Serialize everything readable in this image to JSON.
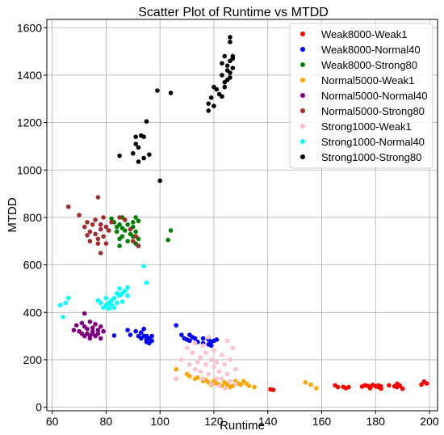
{
  "chart_data": {
    "type": "scatter",
    "title": "Scatter Plot of Runtime vs MTDD",
    "xlabel": "Runtime",
    "ylabel": "MTDD",
    "xlim": [
      58,
      203
    ],
    "ylim": [
      -15,
      1635
    ],
    "xticks": [
      "60",
      "80",
      "100",
      "120",
      "140",
      "160",
      "180",
      "200"
    ],
    "yticks": [
      "0",
      "200",
      "400",
      "600",
      "800",
      "1000",
      "1200",
      "1400",
      "1600"
    ],
    "grid": true,
    "legend_position": "top-right",
    "series": [
      {
        "name": "Weak8000-Weak1",
        "color": "#ff0000",
        "points": [
          [
            141,
            75
          ],
          [
            142,
            73
          ],
          [
            165,
            92
          ],
          [
            166,
            85
          ],
          [
            168,
            86
          ],
          [
            169,
            80
          ],
          [
            170,
            85
          ],
          [
            175,
            87
          ],
          [
            176,
            92
          ],
          [
            177,
            90
          ],
          [
            178,
            86
          ],
          [
            178,
            80
          ],
          [
            179,
            94
          ],
          [
            180,
            88
          ],
          [
            181,
            85
          ],
          [
            181,
            92
          ],
          [
            182,
            78
          ],
          [
            182,
            88
          ],
          [
            185,
            92
          ],
          [
            187,
            88
          ],
          [
            188,
            99
          ],
          [
            188,
            85
          ],
          [
            189,
            91
          ],
          [
            190,
            78
          ],
          [
            197,
            95
          ],
          [
            198,
            108
          ],
          [
            199,
            100
          ]
        ]
      },
      {
        "name": "Weak8000-Normal40",
        "color": "#0000ff",
        "points": [
          [
            83,
            302
          ],
          [
            88,
            325
          ],
          [
            89,
            305
          ],
          [
            91,
            320
          ],
          [
            92,
            300
          ],
          [
            93,
            315
          ],
          [
            93,
            290
          ],
          [
            94,
            330
          ],
          [
            94,
            300
          ],
          [
            95,
            285
          ],
          [
            95,
            275
          ],
          [
            95,
            300
          ],
          [
            96,
            290
          ],
          [
            96,
            270
          ],
          [
            97,
            280
          ],
          [
            97,
            300
          ],
          [
            106,
            345
          ],
          [
            108,
            305
          ],
          [
            109,
            290
          ],
          [
            110,
            285
          ],
          [
            111,
            305
          ],
          [
            111,
            280
          ],
          [
            112,
            295
          ],
          [
            113,
            290
          ],
          [
            114,
            275
          ],
          [
            116,
            290
          ],
          [
            116,
            270
          ],
          [
            118,
            285
          ],
          [
            118,
            265
          ],
          [
            119,
            275
          ],
          [
            119,
            260
          ],
          [
            120,
            280
          ],
          [
            121,
            285
          ]
        ]
      },
      {
        "name": "Weak8000-Strong80",
        "color": "#008000",
        "points": [
          [
            82,
            795
          ],
          [
            83,
            780
          ],
          [
            84,
            760
          ],
          [
            84,
            740
          ],
          [
            85,
            770
          ],
          [
            85,
            710
          ],
          [
            85,
            680
          ],
          [
            86,
            800
          ],
          [
            86,
            755
          ],
          [
            86,
            720
          ],
          [
            87,
            745
          ],
          [
            87,
            790
          ],
          [
            88,
            770
          ],
          [
            88,
            700
          ],
          [
            89,
            730
          ],
          [
            90,
            780
          ],
          [
            90,
            760
          ],
          [
            90,
            720
          ],
          [
            91,
            800
          ],
          [
            91,
            740
          ],
          [
            91,
            690
          ],
          [
            92,
            785
          ],
          [
            92,
            710
          ],
          [
            92,
            680
          ],
          [
            103,
            705
          ],
          [
            104,
            745
          ]
        ]
      },
      {
        "name": "Normal5000-Weak1",
        "color": "#ffa500",
        "points": [
          [
            106,
            160
          ],
          [
            110,
            140
          ],
          [
            111,
            130
          ],
          [
            113,
            120
          ],
          [
            114,
            125
          ],
          [
            116,
            110
          ],
          [
            117,
            115
          ],
          [
            118,
            105
          ],
          [
            119,
            95
          ],
          [
            120,
            110
          ],
          [
            121,
            100
          ],
          [
            122,
            95
          ],
          [
            123,
            90
          ],
          [
            124,
            105
          ],
          [
            125,
            95
          ],
          [
            126,
            85
          ],
          [
            127,
            90
          ],
          [
            128,
            110
          ],
          [
            129,
            100
          ],
          [
            130,
            95
          ],
          [
            131,
            110
          ],
          [
            132,
            100
          ],
          [
            133,
            90
          ],
          [
            135,
            85
          ],
          [
            154,
            105
          ],
          [
            156,
            95
          ],
          [
            158,
            80
          ]
        ]
      },
      {
        "name": "Normal5000-Normal40",
        "color": "#800080",
        "points": [
          [
            68,
            325
          ],
          [
            69,
            345
          ],
          [
            70,
            320
          ],
          [
            71,
            310
          ],
          [
            71,
            355
          ],
          [
            72,
            300
          ],
          [
            72,
            340
          ],
          [
            72,
            395
          ],
          [
            73,
            330
          ],
          [
            73,
            310
          ],
          [
            74,
            360
          ],
          [
            74,
            300
          ],
          [
            74,
            290
          ],
          [
            75,
            335
          ],
          [
            75,
            320
          ],
          [
            75,
            310
          ],
          [
            76,
            350
          ],
          [
            76,
            300
          ],
          [
            77,
            325
          ],
          [
            77,
            310
          ],
          [
            78,
            340
          ],
          [
            78,
            290
          ],
          [
            79,
            320
          ]
        ]
      },
      {
        "name": "Normal5000-Strong80",
        "color": "#a52a2a",
        "points": [
          [
            66,
            845
          ],
          [
            70,
            810
          ],
          [
            72,
            760
          ],
          [
            73,
            780
          ],
          [
            73,
            725
          ],
          [
            74,
            700
          ],
          [
            74,
            740
          ],
          [
            75,
            770
          ],
          [
            76,
            790
          ],
          [
            76,
            730
          ],
          [
            77,
            885
          ],
          [
            77,
            710
          ],
          [
            77,
            690
          ],
          [
            78,
            650
          ],
          [
            78,
            750
          ],
          [
            78,
            770
          ],
          [
            79,
            720
          ],
          [
            79,
            800
          ],
          [
            80,
            760
          ],
          [
            80,
            690
          ],
          [
            81,
            745
          ],
          [
            82,
            780
          ],
          [
            85,
            800
          ],
          [
            87,
            790
          ],
          [
            89,
            750
          ],
          [
            90,
            700
          ],
          [
            91,
            720
          ],
          [
            92,
            680
          ]
        ]
      },
      {
        "name": "Strong1000-Weak1",
        "color": "#ffc0cb",
        "points": [
          [
            106,
            120
          ],
          [
            108,
            200
          ],
          [
            110,
            250
          ],
          [
            111,
            180
          ],
          [
            112,
            230
          ],
          [
            113,
            160
          ],
          [
            113,
            270
          ],
          [
            114,
            190
          ],
          [
            115,
            210
          ],
          [
            115,
            150
          ],
          [
            116,
            260
          ],
          [
            116,
            120
          ],
          [
            117,
            180
          ],
          [
            117,
            230
          ],
          [
            118,
            140
          ],
          [
            118,
            295
          ],
          [
            119,
            200
          ],
          [
            119,
            100
          ],
          [
            120,
            170
          ],
          [
            120,
            240
          ],
          [
            121,
            120
          ],
          [
            121,
            190
          ],
          [
            122,
            150
          ],
          [
            122,
            90
          ],
          [
            123,
            220
          ],
          [
            123,
            120
          ],
          [
            124,
            180
          ],
          [
            124,
            80
          ],
          [
            125,
            280
          ],
          [
            125,
            140
          ],
          [
            126,
            200
          ],
          [
            126,
            110
          ],
          [
            127,
            250
          ],
          [
            128,
            160
          ],
          [
            128,
            100
          ]
        ]
      },
      {
        "name": "Strong1000-Normal40",
        "color": "#00ffff",
        "points": [
          [
            63,
            430
          ],
          [
            64,
            380
          ],
          [
            65,
            440
          ],
          [
            66,
            460
          ],
          [
            77,
            450
          ],
          [
            78,
            440
          ],
          [
            79,
            420
          ],
          [
            80,
            430
          ],
          [
            80,
            460
          ],
          [
            81,
            440
          ],
          [
            81,
            415
          ],
          [
            82,
            450
          ],
          [
            82,
            430
          ],
          [
            83,
            460
          ],
          [
            83,
            420
          ],
          [
            84,
            480
          ],
          [
            84,
            440
          ],
          [
            85,
            500
          ],
          [
            85,
            470
          ],
          [
            86,
            480
          ],
          [
            86,
            445
          ],
          [
            87,
            490
          ],
          [
            88,
            470
          ],
          [
            88,
            505
          ],
          [
            94,
            595
          ],
          [
            95,
            525
          ]
        ]
      },
      {
        "name": "Strong1000-Strong80",
        "color": "#000000",
        "points": [
          [
            85,
            1060
          ],
          [
            90,
            1070
          ],
          [
            91,
            1140
          ],
          [
            91,
            1110
          ],
          [
            92,
            1035
          ],
          [
            92,
            1095
          ],
          [
            93,
            1145
          ],
          [
            94,
            1050
          ],
          [
            94,
            1140
          ],
          [
            95,
            1205
          ],
          [
            96,
            1065
          ],
          [
            99,
            1335
          ],
          [
            100,
            955
          ],
          [
            104,
            1325
          ],
          [
            118,
            1250
          ],
          [
            118,
            1280
          ],
          [
            119,
            1305
          ],
          [
            120,
            1270
          ],
          [
            120,
            1350
          ],
          [
            121,
            1340
          ],
          [
            122,
            1320
          ],
          [
            123,
            1310
          ],
          [
            123,
            1450
          ],
          [
            123,
            1400
          ],
          [
            124,
            1480
          ],
          [
            124,
            1370
          ],
          [
            124,
            1350
          ],
          [
            125,
            1420
          ],
          [
            125,
            1380
          ],
          [
            125,
            1440
          ],
          [
            126,
            1460
          ],
          [
            126,
            1390
          ],
          [
            126,
            1410
          ],
          [
            126,
            1560
          ],
          [
            126,
            1540
          ],
          [
            127,
            1480
          ],
          [
            127,
            1430
          ],
          [
            127,
            1470
          ]
        ]
      }
    ]
  }
}
